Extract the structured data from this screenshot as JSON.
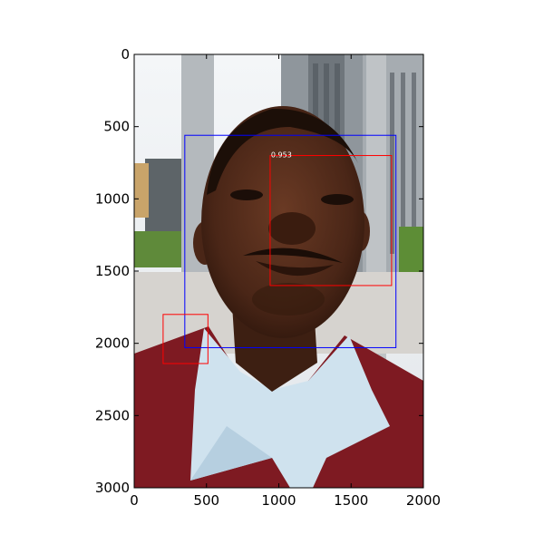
{
  "figure": {
    "image_alt": "Photograph of a smiling man in a light-blue collared shirt and maroon sweater vest outdoors, with buildings and poles behind him",
    "colors": {
      "proposal_box": "#0000ff",
      "detection_box": "#ff0000",
      "score_text": "#ffffff",
      "axis": "#000000"
    },
    "x_ticks": [
      {
        "value": 0,
        "label": "0"
      },
      {
        "value": 500,
        "label": "500"
      },
      {
        "value": 1000,
        "label": "1000"
      },
      {
        "value": 1500,
        "label": "1500"
      },
      {
        "value": 2000,
        "label": "2000"
      }
    ],
    "y_ticks": [
      {
        "value": 0,
        "label": "0"
      },
      {
        "value": 500,
        "label": "500"
      },
      {
        "value": 1000,
        "label": "1000"
      },
      {
        "value": 1500,
        "label": "1500"
      },
      {
        "value": 2000,
        "label": "2000"
      },
      {
        "value": 2500,
        "label": "2500"
      },
      {
        "value": 3000,
        "label": "3000"
      }
    ],
    "boxes": [
      {
        "kind": "proposal",
        "x1": 350,
        "y1": 560,
        "x2": 1810,
        "y2": 2030,
        "score": ""
      },
      {
        "kind": "detection",
        "x1": 940,
        "y1": 700,
        "x2": 1780,
        "y2": 1600,
        "score": "0.953"
      },
      {
        "kind": "detection",
        "x1": 200,
        "y1": 1800,
        "x2": 510,
        "y2": 2140,
        "score": ""
      }
    ]
  }
}
